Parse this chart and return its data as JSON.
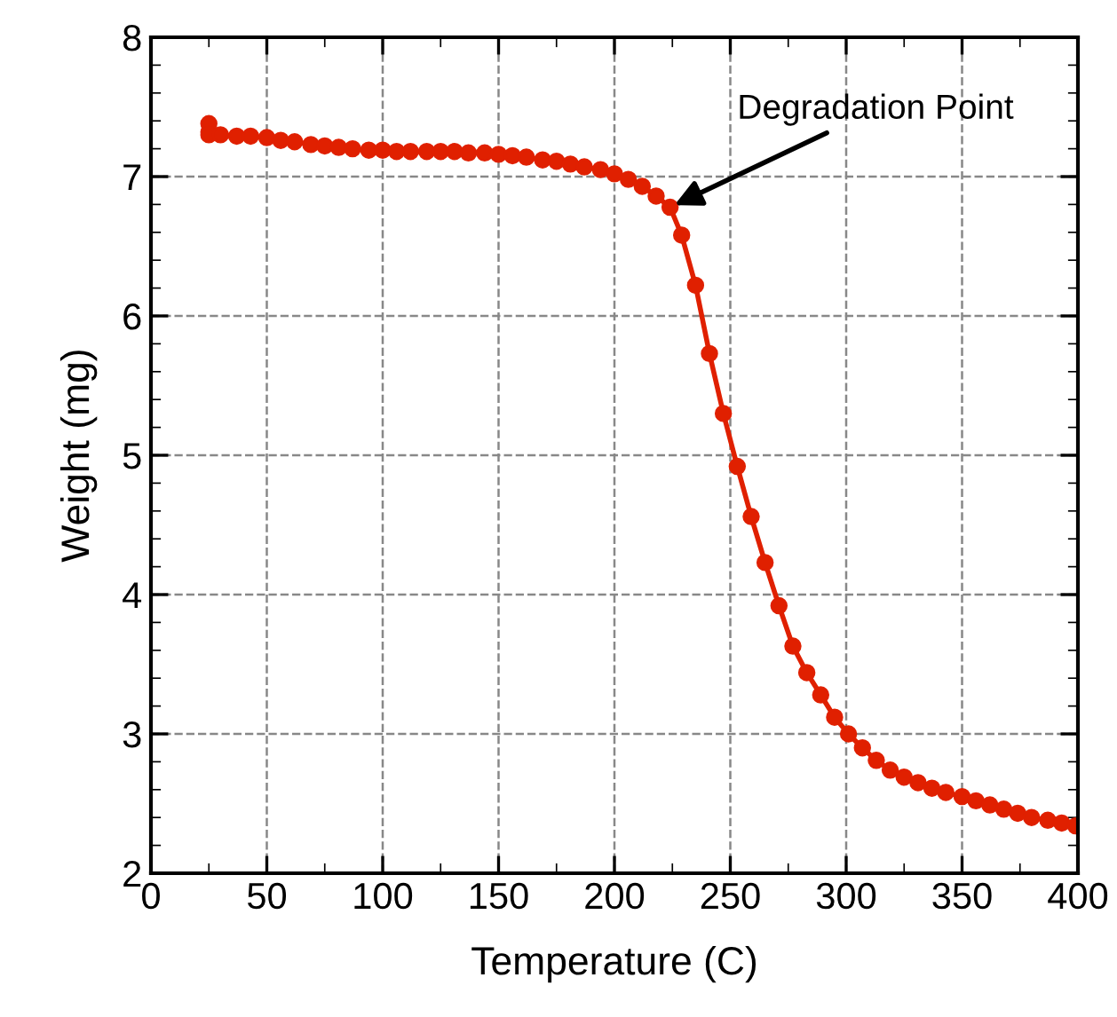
{
  "chart_data": {
    "type": "line",
    "xlabel": "Temperature (C)",
    "ylabel": "Weight (mg)",
    "x": [
      25,
      25,
      25,
      30,
      37,
      43,
      50,
      56,
      62,
      69,
      75,
      81,
      87,
      94,
      100,
      106,
      112,
      119,
      125,
      131,
      137,
      144,
      150,
      156,
      162,
      169,
      175,
      181,
      187,
      194,
      200,
      206,
      212,
      218,
      224,
      229,
      235,
      241,
      247,
      253,
      259,
      265,
      271,
      277,
      283,
      289,
      295,
      301,
      307,
      313,
      319,
      325,
      331,
      337,
      343,
      350,
      356,
      362,
      368,
      374,
      380,
      387,
      393,
      399
    ],
    "series": [
      {
        "color": "#e02000",
        "values": [
          7.38,
          7.32,
          7.3,
          7.3,
          7.29,
          7.29,
          7.28,
          7.26,
          7.25,
          7.23,
          7.22,
          7.21,
          7.2,
          7.19,
          7.19,
          7.18,
          7.18,
          7.18,
          7.18,
          7.18,
          7.17,
          7.17,
          7.16,
          7.15,
          7.14,
          7.12,
          7.11,
          7.09,
          7.07,
          7.05,
          7.02,
          6.98,
          6.93,
          6.86,
          6.78,
          6.58,
          6.22,
          5.73,
          5.3,
          4.92,
          4.56,
          4.23,
          3.92,
          3.63,
          3.44,
          3.28,
          3.12,
          3.0,
          2.9,
          2.81,
          2.74,
          2.69,
          2.65,
          2.61,
          2.58,
          2.55,
          2.52,
          2.49,
          2.46,
          2.43,
          2.4,
          2.38,
          2.36,
          2.34
        ]
      }
    ],
    "xlim": [
      0,
      400
    ],
    "ylim": [
      2,
      8
    ],
    "xticks": [
      0,
      50,
      100,
      150,
      200,
      250,
      300,
      350,
      400
    ],
    "yticks": [
      2,
      3,
      4,
      5,
      6,
      7,
      8
    ],
    "grid": true,
    "marker": "circle",
    "line_style": "solid",
    "legend": false,
    "annotations": [
      {
        "text": "Degradation Point",
        "x": 224,
        "y": 6.78
      }
    ]
  }
}
